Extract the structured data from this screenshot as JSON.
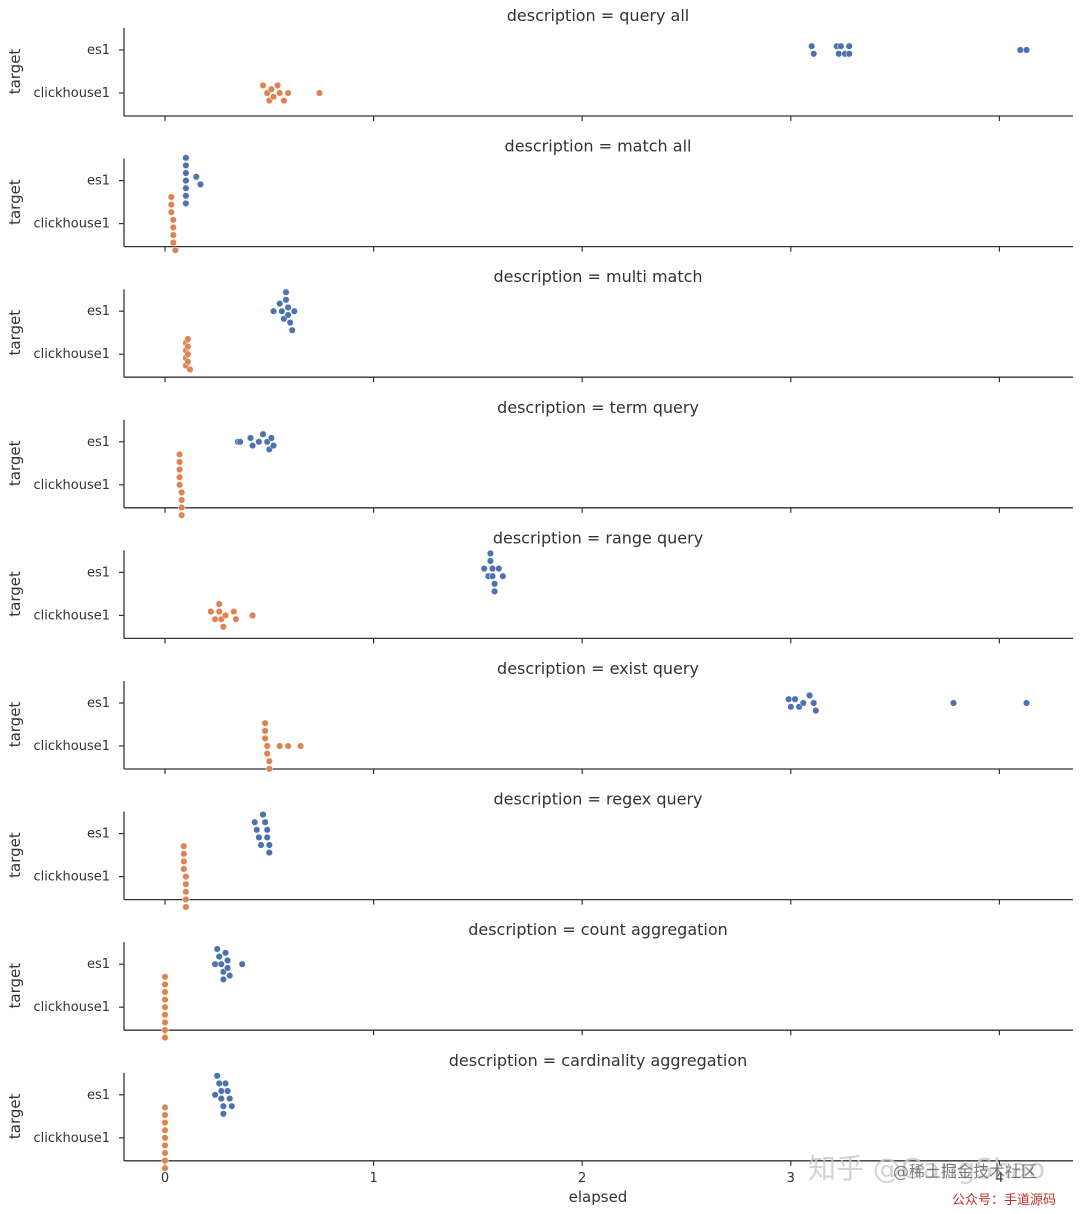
{
  "chart_data": {
    "type": "scatter",
    "kind": "swarm",
    "xlabel": "elapsed",
    "ylabel": "target",
    "xlim": [
      -0.2,
      4.35
    ],
    "xticks": [
      0,
      1,
      2,
      3,
      4
    ],
    "xtick_labels": [
      "0",
      "1",
      "2",
      "3",
      "4"
    ],
    "categories": [
      "es1",
      "clickhouse1"
    ],
    "facet_prefix": "description = ",
    "colors": {
      "es1": "#4c72b0",
      "clickhouse1": "#dd8452"
    },
    "grid": false,
    "panels": [
      {
        "description": "query all",
        "series": [
          {
            "target": "es1",
            "values": [
              3.1,
              3.11,
              3.22,
              3.23,
              3.24,
              3.26,
              3.28,
              3.28,
              4.1,
              4.13
            ]
          },
          {
            "target": "clickhouse1",
            "values": [
              0.47,
              0.49,
              0.5,
              0.51,
              0.52,
              0.54,
              0.55,
              0.57,
              0.59,
              0.74
            ]
          }
        ]
      },
      {
        "description": "match all",
        "series": [
          {
            "target": "es1",
            "values": [
              0.1,
              0.1,
              0.1,
              0.1,
              0.1,
              0.1,
              0.1,
              0.15,
              0.17
            ]
          },
          {
            "target": "clickhouse1",
            "values": [
              0.03,
              0.03,
              0.03,
              0.04,
              0.04,
              0.04,
              0.04,
              0.05
            ]
          }
        ]
      },
      {
        "description": "multi match",
        "series": [
          {
            "target": "es1",
            "values": [
              0.52,
              0.55,
              0.56,
              0.57,
              0.58,
              0.58,
              0.59,
              0.59,
              0.6,
              0.61,
              0.62
            ]
          },
          {
            "target": "clickhouse1",
            "values": [
              0.1,
              0.1,
              0.1,
              0.1,
              0.11,
              0.11,
              0.11,
              0.11,
              0.12
            ]
          }
        ]
      },
      {
        "description": "term query",
        "series": [
          {
            "target": "es1",
            "values": [
              0.35,
              0.36,
              0.41,
              0.42,
              0.45,
              0.47,
              0.49,
              0.5,
              0.51,
              0.52
            ]
          },
          {
            "target": "clickhouse1",
            "values": [
              0.07,
              0.07,
              0.07,
              0.07,
              0.07,
              0.08,
              0.08,
              0.08,
              0.08
            ]
          }
        ]
      },
      {
        "description": "range query",
        "series": [
          {
            "target": "es1",
            "values": [
              1.53,
              1.55,
              1.56,
              1.56,
              1.57,
              1.57,
              1.58,
              1.58,
              1.6,
              1.62
            ]
          },
          {
            "target": "clickhouse1",
            "values": [
              0.22,
              0.24,
              0.26,
              0.26,
              0.27,
              0.28,
              0.29,
              0.33,
              0.34,
              0.42
            ]
          }
        ]
      },
      {
        "description": "exist query",
        "series": [
          {
            "target": "es1",
            "values": [
              2.99,
              3.0,
              3.02,
              3.04,
              3.06,
              3.09,
              3.11,
              3.12,
              3.78,
              4.13
            ]
          },
          {
            "target": "clickhouse1",
            "values": [
              0.48,
              0.48,
              0.48,
              0.49,
              0.49,
              0.5,
              0.5,
              0.55,
              0.59,
              0.65
            ]
          }
        ]
      },
      {
        "description": "regex query",
        "series": [
          {
            "target": "es1",
            "values": [
              0.43,
              0.44,
              0.45,
              0.46,
              0.47,
              0.48,
              0.49,
              0.49,
              0.5,
              0.5
            ]
          },
          {
            "target": "clickhouse1",
            "values": [
              0.09,
              0.09,
              0.09,
              0.09,
              0.1,
              0.1,
              0.1,
              0.1,
              0.1
            ]
          }
        ]
      },
      {
        "description": "count aggregation",
        "series": [
          {
            "target": "es1",
            "values": [
              0.24,
              0.25,
              0.26,
              0.27,
              0.28,
              0.28,
              0.29,
              0.3,
              0.3,
              0.31,
              0.37
            ]
          },
          {
            "target": "clickhouse1",
            "values": [
              0.0,
              0.0,
              0.0,
              0.0,
              0.0,
              0.0,
              0.0,
              0.0,
              0.0
            ]
          }
        ]
      },
      {
        "description": "cardinality aggregation",
        "series": [
          {
            "target": "es1",
            "values": [
              0.24,
              0.25,
              0.26,
              0.27,
              0.27,
              0.28,
              0.28,
              0.29,
              0.3,
              0.31,
              0.32
            ]
          },
          {
            "target": "clickhouse1",
            "values": [
              0.0,
              0.0,
              0.0,
              0.0,
              0.0,
              0.0,
              0.0,
              0.0,
              0.0
            ]
          }
        ]
      }
    ]
  },
  "watermark": {
    "zhihu_text": "知乎 @GangShao",
    "community_text": "@稀土掘金技术社区",
    "footer_text": "公众号：手道源码"
  }
}
